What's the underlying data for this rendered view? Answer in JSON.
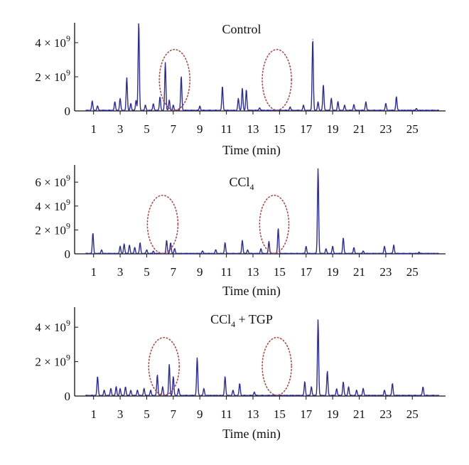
{
  "figure": {
    "colors": {
      "trace": "#2b2b9a",
      "axis": "#111111",
      "highlight": "#b04a4a"
    }
  },
  "chart_data": [
    {
      "type": "line",
      "title": "Control",
      "title_sub": "",
      "title_suffix": "",
      "xlabel": "Time (min)",
      "ylabel": "",
      "xlim": [
        0,
        27.5
      ],
      "ylim": [
        0,
        5000000000.0
      ],
      "xticks": [
        1,
        3,
        5,
        7,
        9,
        11,
        13,
        15,
        17,
        19,
        21,
        23,
        25
      ],
      "yticks": [
        {
          "value": 0,
          "label_base": "0",
          "label_exp": ""
        },
        {
          "value": 2000000000.0,
          "label_base": "2 × 10",
          "label_exp": "9"
        },
        {
          "value": 4000000000.0,
          "label_base": "4 × 10",
          "label_exp": "9"
        }
      ],
      "highlight_regions": [
        {
          "center_min": 7.1,
          "width_min": 2.3,
          "y_low": 50000000.0,
          "y_high": 3600000000.0
        },
        {
          "center_min": 14.8,
          "width_min": 2.2,
          "y_low": 50000000.0,
          "y_high": 3600000000.0
        }
      ],
      "peaks": [
        {
          "x": 0.9,
          "y": 550000000.0
        },
        {
          "x": 1.3,
          "y": 250000000.0
        },
        {
          "x": 2.6,
          "y": 500000000.0
        },
        {
          "x": 3.0,
          "y": 700000000.0
        },
        {
          "x": 3.5,
          "y": 1900000000.0
        },
        {
          "x": 3.8,
          "y": 400000000.0
        },
        {
          "x": 4.2,
          "y": 600000000.0
        },
        {
          "x": 4.4,
          "y": 5200000000.0
        },
        {
          "x": 4.9,
          "y": 300000000.0
        },
        {
          "x": 5.5,
          "y": 400000000.0
        },
        {
          "x": 6.0,
          "y": 800000000.0
        },
        {
          "x": 6.4,
          "y": 2800000000.0
        },
        {
          "x": 6.7,
          "y": 600000000.0
        },
        {
          "x": 7.0,
          "y": 300000000.0
        },
        {
          "x": 7.6,
          "y": 2000000000.0
        },
        {
          "x": 9.0,
          "y": 250000000.0
        },
        {
          "x": 10.7,
          "y": 1400000000.0
        },
        {
          "x": 11.9,
          "y": 700000000.0
        },
        {
          "x": 12.2,
          "y": 1300000000.0
        },
        {
          "x": 12.5,
          "y": 1200000000.0
        },
        {
          "x": 13.5,
          "y": 150000000.0
        },
        {
          "x": 15.8,
          "y": 200000000.0
        },
        {
          "x": 16.8,
          "y": 300000000.0
        },
        {
          "x": 17.5,
          "y": 4200000000.0
        },
        {
          "x": 17.9,
          "y": 500000000.0
        },
        {
          "x": 18.3,
          "y": 1500000000.0
        },
        {
          "x": 18.9,
          "y": 700000000.0
        },
        {
          "x": 19.4,
          "y": 500000000.0
        },
        {
          "x": 19.9,
          "y": 300000000.0
        },
        {
          "x": 20.6,
          "y": 350000000.0
        },
        {
          "x": 21.5,
          "y": 500000000.0
        },
        {
          "x": 23.0,
          "y": 400000000.0
        },
        {
          "x": 23.8,
          "y": 800000000.0
        },
        {
          "x": 25.3,
          "y": 100000000.0
        }
      ]
    },
    {
      "type": "line",
      "title": "CCl",
      "title_sub": "4",
      "title_suffix": "",
      "xlabel": "Time (min)",
      "ylabel": "",
      "xlim": [
        0,
        27.5
      ],
      "ylim": [
        0,
        7200000000.0
      ],
      "xticks": [
        1,
        3,
        5,
        7,
        9,
        11,
        13,
        15,
        17,
        19,
        21,
        23,
        25
      ],
      "yticks": [
        {
          "value": 0,
          "label_base": "0",
          "label_exp": ""
        },
        {
          "value": 2000000000.0,
          "label_base": "2 × 10",
          "label_exp": "9"
        },
        {
          "value": 4000000000.0,
          "label_base": "4 × 10",
          "label_exp": "9"
        },
        {
          "value": 6000000000.0,
          "label_base": "6 × 10",
          "label_exp": "9"
        }
      ],
      "highlight_regions": [
        {
          "center_min": 6.2,
          "width_min": 2.3,
          "y_low": 50000000.0,
          "y_high": 4900000000.0
        },
        {
          "center_min": 14.6,
          "width_min": 2.2,
          "y_low": 50000000.0,
          "y_high": 4900000000.0
        }
      ],
      "peaks": [
        {
          "x": 0.95,
          "y": 1700000000.0
        },
        {
          "x": 1.6,
          "y": 300000000.0
        },
        {
          "x": 3.0,
          "y": 600000000.0
        },
        {
          "x": 3.3,
          "y": 800000000.0
        },
        {
          "x": 3.7,
          "y": 700000000.0
        },
        {
          "x": 4.1,
          "y": 500000000.0
        },
        {
          "x": 4.5,
          "y": 900000000.0
        },
        {
          "x": 5.0,
          "y": 300000000.0
        },
        {
          "x": 5.5,
          "y": 200000000.0
        },
        {
          "x": 6.5,
          "y": 1100000000.0
        },
        {
          "x": 6.8,
          "y": 900000000.0
        },
        {
          "x": 7.1,
          "y": 400000000.0
        },
        {
          "x": 9.2,
          "y": 200000000.0
        },
        {
          "x": 10.2,
          "y": 300000000.0
        },
        {
          "x": 10.9,
          "y": 900000000.0
        },
        {
          "x": 12.2,
          "y": 1100000000.0
        },
        {
          "x": 12.6,
          "y": 300000000.0
        },
        {
          "x": 13.6,
          "y": 400000000.0
        },
        {
          "x": 14.2,
          "y": 1000000000.0
        },
        {
          "x": 14.9,
          "y": 2100000000.0
        },
        {
          "x": 17.0,
          "y": 600000000.0
        },
        {
          "x": 17.9,
          "y": 7100000000.0
        },
        {
          "x": 18.5,
          "y": 400000000.0
        },
        {
          "x": 19.0,
          "y": 600000000.0
        },
        {
          "x": 19.8,
          "y": 1300000000.0
        },
        {
          "x": 20.6,
          "y": 500000000.0
        },
        {
          "x": 21.3,
          "y": 200000000.0
        },
        {
          "x": 22.9,
          "y": 600000000.0
        },
        {
          "x": 23.6,
          "y": 700000000.0
        },
        {
          "x": 25.5,
          "y": 100000000.0
        }
      ]
    },
    {
      "type": "line",
      "title": "CCl",
      "title_sub": "4",
      "title_suffix": " + TGP",
      "xlabel": "Time (min)",
      "ylabel": "",
      "xlim": [
        0,
        27.5
      ],
      "ylim": [
        0,
        5000000000.0
      ],
      "xticks": [
        1,
        3,
        5,
        7,
        9,
        11,
        13,
        15,
        17,
        19,
        21,
        23,
        25
      ],
      "yticks": [
        {
          "value": 0,
          "label_base": "0",
          "label_exp": ""
        },
        {
          "value": 2000000000.0,
          "label_base": "2 × 10",
          "label_exp": "9"
        },
        {
          "value": 4000000000.0,
          "label_base": "4 × 10",
          "label_exp": "9"
        }
      ],
      "highlight_regions": [
        {
          "center_min": 6.3,
          "width_min": 2.3,
          "y_low": 50000000.0,
          "y_high": 3400000000.0
        },
        {
          "center_min": 14.8,
          "width_min": 2.2,
          "y_low": 50000000.0,
          "y_high": 3400000000.0
        }
      ],
      "peaks": [
        {
          "x": 1.3,
          "y": 1100000000.0
        },
        {
          "x": 1.8,
          "y": 300000000.0
        },
        {
          "x": 2.3,
          "y": 400000000.0
        },
        {
          "x": 2.7,
          "y": 500000000.0
        },
        {
          "x": 3.0,
          "y": 400000000.0
        },
        {
          "x": 3.4,
          "y": 500000000.0
        },
        {
          "x": 3.8,
          "y": 300000000.0
        },
        {
          "x": 4.3,
          "y": 300000000.0
        },
        {
          "x": 4.8,
          "y": 400000000.0
        },
        {
          "x": 5.3,
          "y": 300000000.0
        },
        {
          "x": 5.8,
          "y": 1200000000.0
        },
        {
          "x": 6.2,
          "y": 500000000.0
        },
        {
          "x": 6.7,
          "y": 1800000000.0
        },
        {
          "x": 7.0,
          "y": 1100000000.0
        },
        {
          "x": 7.4,
          "y": 400000000.0
        },
        {
          "x": 8.8,
          "y": 2200000000.0
        },
        {
          "x": 9.3,
          "y": 400000000.0
        },
        {
          "x": 10.9,
          "y": 1100000000.0
        },
        {
          "x": 11.5,
          "y": 300000000.0
        },
        {
          "x": 12.0,
          "y": 700000000.0
        },
        {
          "x": 13.1,
          "y": 200000000.0
        },
        {
          "x": 16.9,
          "y": 800000000.0
        },
        {
          "x": 17.4,
          "y": 500000000.0
        },
        {
          "x": 17.9,
          "y": 4400000000.0
        },
        {
          "x": 18.6,
          "y": 1400000000.0
        },
        {
          "x": 19.3,
          "y": 400000000.0
        },
        {
          "x": 19.8,
          "y": 800000000.0
        },
        {
          "x": 20.2,
          "y": 500000000.0
        },
        {
          "x": 20.8,
          "y": 300000000.0
        },
        {
          "x": 21.3,
          "y": 400000000.0
        },
        {
          "x": 22.9,
          "y": 300000000.0
        },
        {
          "x": 23.5,
          "y": 700000000.0
        },
        {
          "x": 25.8,
          "y": 500000000.0
        }
      ]
    }
  ]
}
